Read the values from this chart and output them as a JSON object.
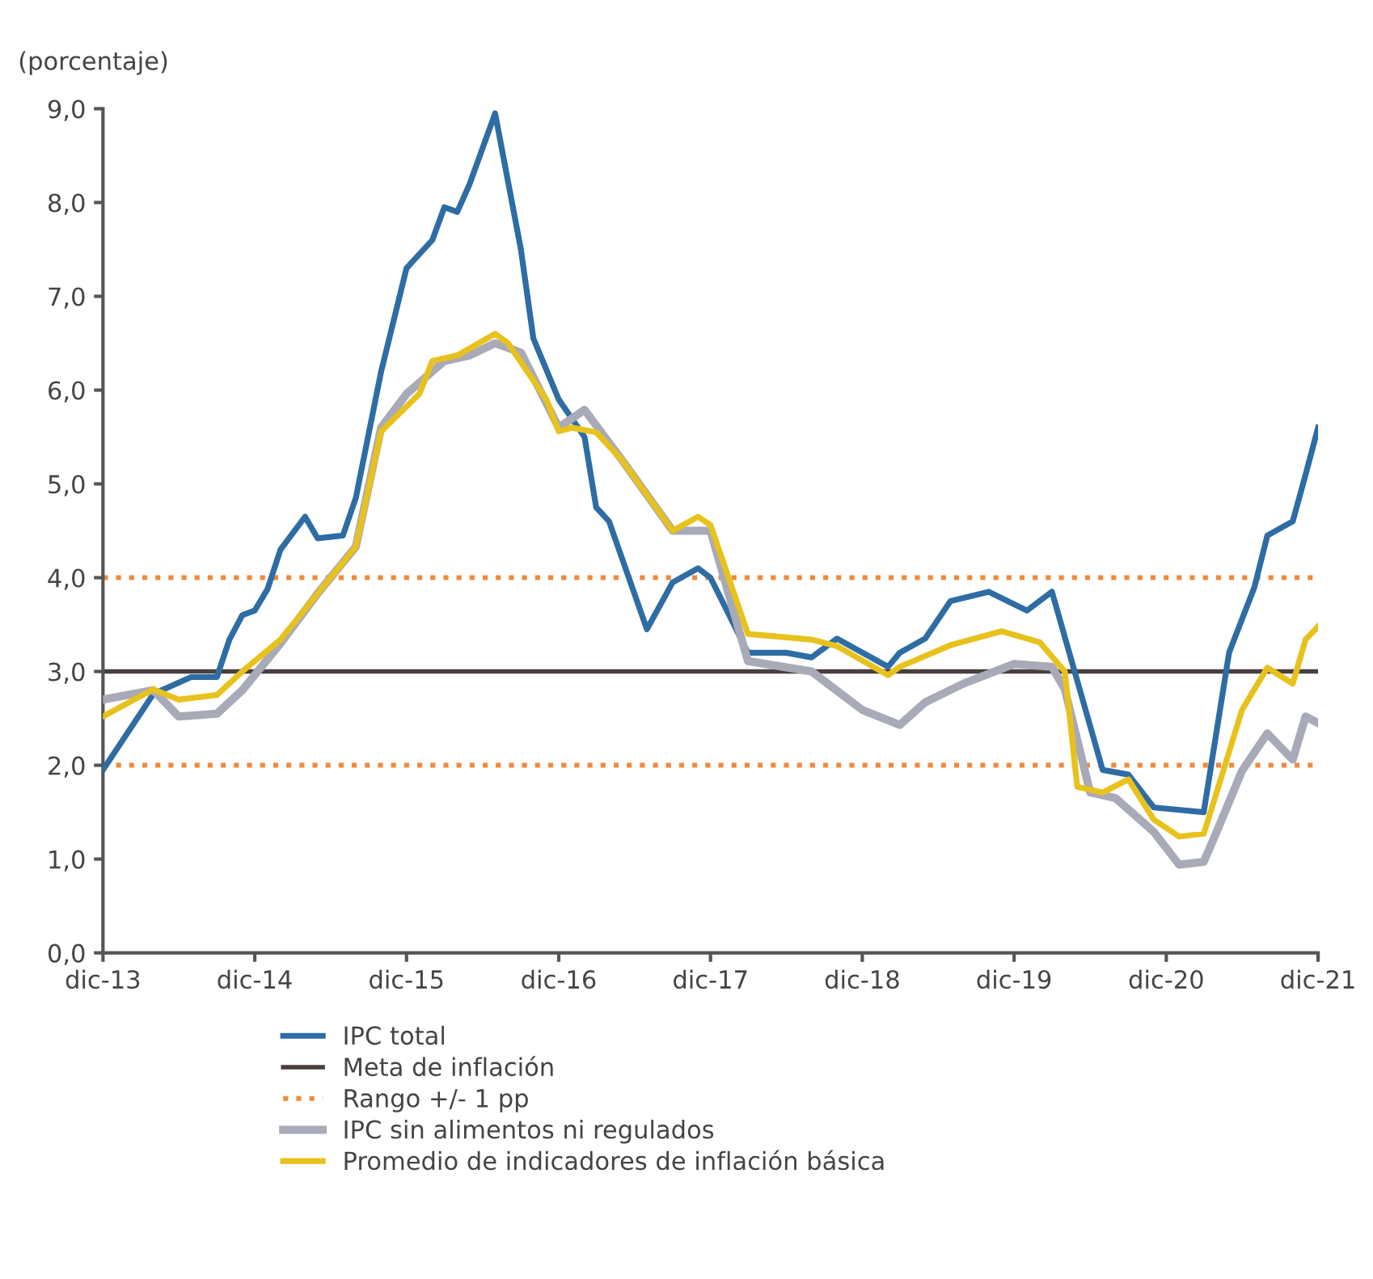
{
  "chart_data": {
    "type": "line",
    "ylabel": "(porcentaje)",
    "ylim": [
      0,
      9
    ],
    "yticks": [
      {
        "value": 0,
        "label": "0,0"
      },
      {
        "value": 1,
        "label": "1,0"
      },
      {
        "value": 2,
        "label": "2,0"
      },
      {
        "value": 3,
        "label": "3,0"
      },
      {
        "value": 4,
        "label": "4,0"
      },
      {
        "value": 5,
        "label": "5,0"
      },
      {
        "value": 6,
        "label": "6,0"
      },
      {
        "value": 7,
        "label": "7,0"
      },
      {
        "value": 8,
        "label": "8,0"
      },
      {
        "value": 9,
        "label": "9,0"
      }
    ],
    "xlim": [
      "2013-12",
      "2021-12"
    ],
    "xticks": [
      {
        "value": "2013-12",
        "label": "dic-13"
      },
      {
        "value": "2014-12",
        "label": "dic-14"
      },
      {
        "value": "2015-12",
        "label": "dic-15"
      },
      {
        "value": "2016-12",
        "label": "dic-16"
      },
      {
        "value": "2017-12",
        "label": "dic-17"
      },
      {
        "value": "2018-12",
        "label": "dic-18"
      },
      {
        "value": "2019-12",
        "label": "dic-19"
      },
      {
        "value": "2020-12",
        "label": "dic-20"
      },
      {
        "value": "2021-12",
        "label": "dic-21"
      }
    ],
    "grid": false,
    "legend": "bottom",
    "line_style": "solid",
    "marker": "none",
    "series": [
      {
        "name": "IPC total",
        "color": "#2e6ca4",
        "x": [
          "2013-12",
          "2014-04",
          "2014-07",
          "2014-09",
          "2014-10",
          "2014-11",
          "2014-12",
          "2015-01",
          "2015-02",
          "2015-04",
          "2015-05",
          "2015-07",
          "2015-08",
          "2015-10",
          "2015-12",
          "2016-02",
          "2016-03",
          "2016-04",
          "2016-05",
          "2016-07",
          "2016-09",
          "2016-10",
          "2016-12",
          "2017-02",
          "2017-03",
          "2017-04",
          "2017-07",
          "2017-09",
          "2017-11",
          "2017-12",
          "2018-03",
          "2018-06",
          "2018-08",
          "2018-10",
          "2019-02",
          "2019-03",
          "2019-05",
          "2019-07",
          "2019-10",
          "2020-01",
          "2020-03",
          "2020-05",
          "2020-07",
          "2020-09",
          "2020-11",
          "2021-03",
          "2021-05",
          "2021-07",
          "2021-08",
          "2021-10",
          "2021-11",
          "2021-12"
        ],
        "values": [
          1.95,
          2.76,
          2.94,
          2.94,
          3.34,
          3.6,
          3.65,
          3.88,
          4.3,
          4.65,
          4.42,
          4.45,
          4.85,
          6.2,
          7.3,
          7.6,
          7.95,
          7.9,
          8.2,
          8.95,
          7.5,
          6.55,
          5.9,
          5.5,
          4.75,
          4.6,
          3.45,
          3.95,
          4.1,
          4.0,
          3.2,
          3.2,
          3.15,
          3.35,
          3.05,
          3.2,
          3.35,
          3.75,
          3.85,
          3.65,
          3.85,
          2.9,
          1.95,
          1.9,
          1.55,
          1.5,
          3.2,
          3.9,
          4.45,
          4.6,
          5.1,
          5.6
        ]
      },
      {
        "name": "IPC sin alimentos ni regulados",
        "color": "#a9aab8",
        "x": [
          "2013-12",
          "2014-04",
          "2014-06",
          "2014-09",
          "2014-11",
          "2015-02",
          "2015-05",
          "2015-08",
          "2015-10",
          "2015-12",
          "2016-03",
          "2016-05",
          "2016-07",
          "2016-09",
          "2016-12",
          "2017-02",
          "2017-05",
          "2017-09",
          "2017-12",
          "2018-03",
          "2018-08",
          "2018-12",
          "2019-03",
          "2019-05",
          "2019-08",
          "2019-12",
          "2020-03",
          "2020-04",
          "2020-06",
          "2020-08",
          "2020-11",
          "2021-01",
          "2021-03",
          "2021-04",
          "2021-06",
          "2021-08",
          "2021-10",
          "2021-11",
          "2021-12"
        ],
        "values": [
          2.7,
          2.8,
          2.52,
          2.55,
          2.8,
          3.3,
          3.83,
          4.33,
          5.6,
          5.96,
          6.31,
          6.37,
          6.5,
          6.4,
          5.6,
          5.79,
          5.26,
          4.5,
          4.5,
          3.11,
          3.0,
          2.59,
          2.43,
          2.67,
          2.87,
          3.08,
          3.05,
          2.81,
          1.71,
          1.65,
          1.29,
          0.94,
          0.97,
          1.29,
          1.94,
          2.34,
          2.06,
          2.52,
          2.45
        ]
      },
      {
        "name": "Promedio de indicadores de inflación básica",
        "color": "#e8c21c",
        "x": [
          "2013-12",
          "2014-04",
          "2014-06",
          "2014-09",
          "2014-11",
          "2015-02",
          "2015-05",
          "2015-08",
          "2015-10",
          "2016-01",
          "2016-02",
          "2016-04",
          "2016-07",
          "2016-08",
          "2016-11",
          "2016-12",
          "2017-01",
          "2017-03",
          "2017-05",
          "2017-09",
          "2017-11",
          "2017-12",
          "2018-03",
          "2018-08",
          "2018-10",
          "2019-02",
          "2019-03",
          "2019-07",
          "2019-11",
          "2020-02",
          "2020-04",
          "2020-05",
          "2020-07",
          "2020-09",
          "2020-11",
          "2021-01",
          "2021-03",
          "2021-04",
          "2021-06",
          "2021-08",
          "2021-10",
          "2021-11",
          "2021-12"
        ],
        "values": [
          2.52,
          2.81,
          2.7,
          2.75,
          3.0,
          3.34,
          3.83,
          4.33,
          5.56,
          5.96,
          6.31,
          6.37,
          6.6,
          6.5,
          5.9,
          5.56,
          5.6,
          5.55,
          5.26,
          4.5,
          4.65,
          4.56,
          3.4,
          3.34,
          3.27,
          2.96,
          3.05,
          3.28,
          3.43,
          3.31,
          3.0,
          1.77,
          1.71,
          1.85,
          1.42,
          1.24,
          1.27,
          1.71,
          2.59,
          3.04,
          2.87,
          3.34,
          3.48
        ]
      }
    ],
    "ref_lines": [
      {
        "axis": "y",
        "value": 3,
        "label": "Meta de inflación",
        "color": "#4a3f3f",
        "line_style": "solid"
      },
      {
        "axis": "y",
        "value": 4,
        "label": "Rango +/- 1 pp",
        "color": "#f08a3c",
        "line_style": "dotted"
      },
      {
        "axis": "y",
        "value": 2,
        "label": null,
        "color": "#f08a3c",
        "line_style": "dotted"
      }
    ]
  }
}
